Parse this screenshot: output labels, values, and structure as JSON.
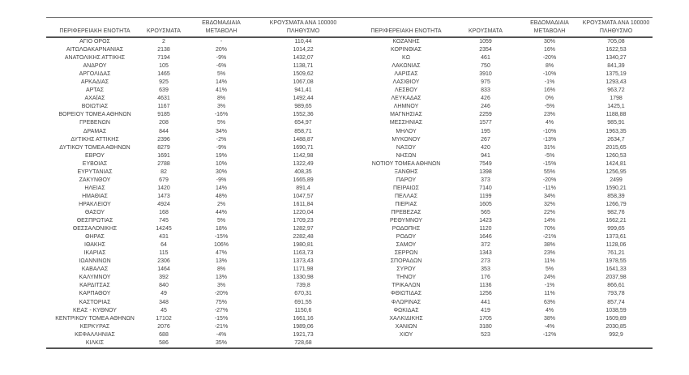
{
  "colors": {
    "background": "#ffffff",
    "text": "#3f3f3f",
    "border_dark": "#545454",
    "border_light": "#6e6e6e"
  },
  "table": {
    "headers": [
      [
        "ΠΕΡΙΦΕΡΕΙΑΚΗ ΕΝΟΤΗΤΑ"
      ],
      [
        "ΚΡΟΥΣΜΑΤΑ"
      ],
      [
        "ΕΒΔΟΜΑΔΙΑΙΑ",
        "ΜΕΤΑΒΟΛΗ"
      ],
      [
        "ΚΡΟΥΣΜΑΤΑ ΑΝΑ 100000",
        "ΠΛΗΘΥΣΜΟ"
      ]
    ],
    "left_rows": [
      [
        "ΑΓΙΟ ΟΡΟΣ",
        "2",
        "-",
        "110,44"
      ],
      [
        "ΑΙΤΩΛΟΑΚΑΡΝΑΝΙΑΣ",
        "2138",
        "20%",
        "1014,22"
      ],
      [
        "ΑΝΑΤΟΛΙΚΗΣ ΑΤΤΙΚΗΣ",
        "7194",
        "-9%",
        "1432,07"
      ],
      [
        "ΑΝΔΡΟΥ",
        "105",
        "-6%",
        "1138,71"
      ],
      [
        "ΑΡΓΟΛΙΔΑΣ",
        "1465",
        "5%",
        "1509,62"
      ],
      [
        "ΑΡΚΑΔΙΑΣ",
        "925",
        "14%",
        "1067,08"
      ],
      [
        "ΑΡΤΑΣ",
        "639",
        "41%",
        "941,41"
      ],
      [
        "ΑΧΑΪΑΣ",
        "4631",
        "8%",
        "1492,44"
      ],
      [
        "ΒΟΙΩΤΙΑΣ",
        "1167",
        "3%",
        "989,65"
      ],
      [
        "ΒΟΡΕΙΟΥ ΤΟΜΕΑ ΑΘΗΝΩΝ",
        "9185",
        "-16%",
        "1552,36"
      ],
      [
        "ΓΡΕΒΕΝΩΝ",
        "208",
        "5%",
        "654,97"
      ],
      [
        "ΔΡΑΜΑΣ",
        "844",
        "34%",
        "858,71"
      ],
      [
        "ΔΥΤΙΚΗΣ ΑΤΤΙΚΗΣ",
        "2396",
        "-2%",
        "1488,87"
      ],
      [
        "ΔΥΤΙΚΟΥ ΤΟΜΕΑ ΑΘΗΝΩΝ",
        "8279",
        "-9%",
        "1690,71"
      ],
      [
        "ΕΒΡΟΥ",
        "1691",
        "19%",
        "1142,98"
      ],
      [
        "ΕΥΒΟΙΑΣ",
        "2788",
        "10%",
        "1322,49"
      ],
      [
        "ΕΥΡΥΤΑΝΙΑΣ",
        "82",
        "30%",
        "408,35"
      ],
      [
        "ΖΑΚΥΝΘΟΥ",
        "679",
        "-9%",
        "1665,89"
      ],
      [
        "ΗΛΕΙΑΣ",
        "1420",
        "14%",
        "891,4"
      ],
      [
        "ΗΜΑΘΙΑΣ",
        "1473",
        "48%",
        "1047,57"
      ],
      [
        "ΗΡΑΚΛΕΙΟΥ",
        "4924",
        "2%",
        "1611,84"
      ],
      [
        "ΘΑΣΟΥ",
        "168",
        "44%",
        "1220,04"
      ],
      [
        "ΘΕΣΠΡΩΤΙΑΣ",
        "745",
        "5%",
        "1709,23"
      ],
      [
        "ΘΕΣΣΑΛΟΝΙΚΗΣ",
        "14245",
        "18%",
        "1282,97"
      ],
      [
        "ΘΗΡΑΣ",
        "431",
        "-15%",
        "2282,48"
      ],
      [
        "ΙΘΑΚΗΣ",
        "64",
        "106%",
        "1980,81"
      ],
      [
        "ΙΚΑΡΙΑΣ",
        "115",
        "47%",
        "1163,73"
      ],
      [
        "ΙΩΑΝΝΙΝΩΝ",
        "2306",
        "13%",
        "1373,43"
      ],
      [
        "ΚΑΒΑΛΑΣ",
        "1464",
        "8%",
        "1171,98"
      ],
      [
        "ΚΑΛΥΜΝΟΥ",
        "392",
        "13%",
        "1330,98"
      ],
      [
        "ΚΑΡΔΙΤΣΑΣ",
        "840",
        "3%",
        "739,8"
      ],
      [
        "ΚΑΡΠΑΘΟΥ",
        "49",
        "-20%",
        "670,31"
      ],
      [
        "ΚΑΣΤΟΡΙΑΣ",
        "348",
        "75%",
        "691,55"
      ],
      [
        "ΚΕΑΣ - ΚΥΘΝΟΥ",
        "45",
        "-27%",
        "1150,6"
      ],
      [
        "ΚΕΝΤΡΙΚΟΥ ΤΟΜΕΑ ΑΘΗΝΩΝ",
        "17102",
        "-15%",
        "1661,16"
      ],
      [
        "ΚΕΡΚΥΡΑΣ",
        "2076",
        "-21%",
        "1989,06"
      ],
      [
        "ΚΕΦΑΛΛΗΝΙΑΣ",
        "688",
        "-4%",
        "1921,73"
      ],
      [
        "ΚΙΛΚΙΣ",
        "586",
        "35%",
        "728,68"
      ]
    ],
    "right_rows": [
      [
        "ΚΟΖΑΝΗΣ",
        "1059",
        "30%",
        "705,08"
      ],
      [
        "ΚΟΡΙΝΘΙΑΣ",
        "2354",
        "16%",
        "1622,53"
      ],
      [
        "ΚΩ",
        "461",
        "-20%",
        "1340,27"
      ],
      [
        "ΛΑΚΩΝΙΑΣ",
        "750",
        "8%",
        "841,39"
      ],
      [
        "ΛΑΡΙΣΑΣ",
        "3910",
        "-10%",
        "1375,19"
      ],
      [
        "ΛΑΣΙΘΙΟΥ",
        "975",
        "-1%",
        "1293,43"
      ],
      [
        "ΛΕΣΒΟΥ",
        "833",
        "16%",
        "963,72"
      ],
      [
        "ΛΕΥΚΑΔΑΣ",
        "426",
        "0%",
        "1798"
      ],
      [
        "ΛΗΜΝΟΥ",
        "246",
        "-5%",
        "1425,1"
      ],
      [
        "ΜΑΓΝΗΣΙΑΣ",
        "2259",
        "23%",
        "1188,88"
      ],
      [
        "ΜΕΣΣΗΝΙΑΣ",
        "1577",
        "4%",
        "985,91"
      ],
      [
        "ΜΗΛΟΥ",
        "195",
        "-10%",
        "1963,35"
      ],
      [
        "ΜΥΚΟΝΟΥ",
        "267",
        "-13%",
        "2634,7"
      ],
      [
        "ΝΑΞΟΥ",
        "420",
        "31%",
        "2015,65"
      ],
      [
        "ΝΗΣΩΝ",
        "941",
        "-5%",
        "1260,53"
      ],
      [
        "ΝΟΤΙΟΥ ΤΟΜΕΑ ΑΘΗΝΩΝ",
        "7549",
        "-15%",
        "1424,81"
      ],
      [
        "ΞΑΝΘΗΣ",
        "1398",
        "55%",
        "1256,95"
      ],
      [
        "ΠΑΡΟΥ",
        "373",
        "-20%",
        "2499"
      ],
      [
        "ΠΕΙΡΑΙΩΣ",
        "7140",
        "-11%",
        "1590,21"
      ],
      [
        "ΠΕΛΛΑΣ",
        "1199",
        "34%",
        "858,39"
      ],
      [
        "ΠΙΕΡΙΑΣ",
        "1605",
        "32%",
        "1266,79"
      ],
      [
        "ΠΡΕΒΕΖΑΣ",
        "565",
        "22%",
        "982,76"
      ],
      [
        "ΡΕΘΥΜΝΟΥ",
        "1423",
        "14%",
        "1662,21"
      ],
      [
        "ΡΟΔΟΠΗΣ",
        "1120",
        "70%",
        "999,65"
      ],
      [
        "ΡΟΔΟΥ",
        "1646",
        "-21%",
        "1373,61"
      ],
      [
        "ΣΑΜΟΥ",
        "372",
        "38%",
        "1128,06"
      ],
      [
        "ΣΕΡΡΩΝ",
        "1343",
        "23%",
        "761,21"
      ],
      [
        "ΣΠΟΡΑΔΩΝ",
        "273",
        "11%",
        "1978,55"
      ],
      [
        "ΣΥΡΟΥ",
        "353",
        "5%",
        "1641,33"
      ],
      [
        "ΤΗΝΟΥ",
        "176",
        "24%",
        "2037,98"
      ],
      [
        "ΤΡΙΚΑΛΩΝ",
        "1136",
        "-1%",
        "866,61"
      ],
      [
        "ΦΘΙΩΤΙΔΑΣ",
        "1256",
        "11%",
        "793,78"
      ],
      [
        "ΦΛΩΡΙΝΑΣ",
        "441",
        "63%",
        "857,74"
      ],
      [
        "ΦΩΚΙΔΑΣ",
        "419",
        "4%",
        "1038,59"
      ],
      [
        "ΧΑΛΚΙΔΙΚΗΣ",
        "1705",
        "38%",
        "1609,89"
      ],
      [
        "ΧΑΝΙΩΝ",
        "3180",
        "-4%",
        "2030,85"
      ],
      [
        "ΧΙΟΥ",
        "523",
        "-12%",
        "992,9"
      ]
    ]
  }
}
